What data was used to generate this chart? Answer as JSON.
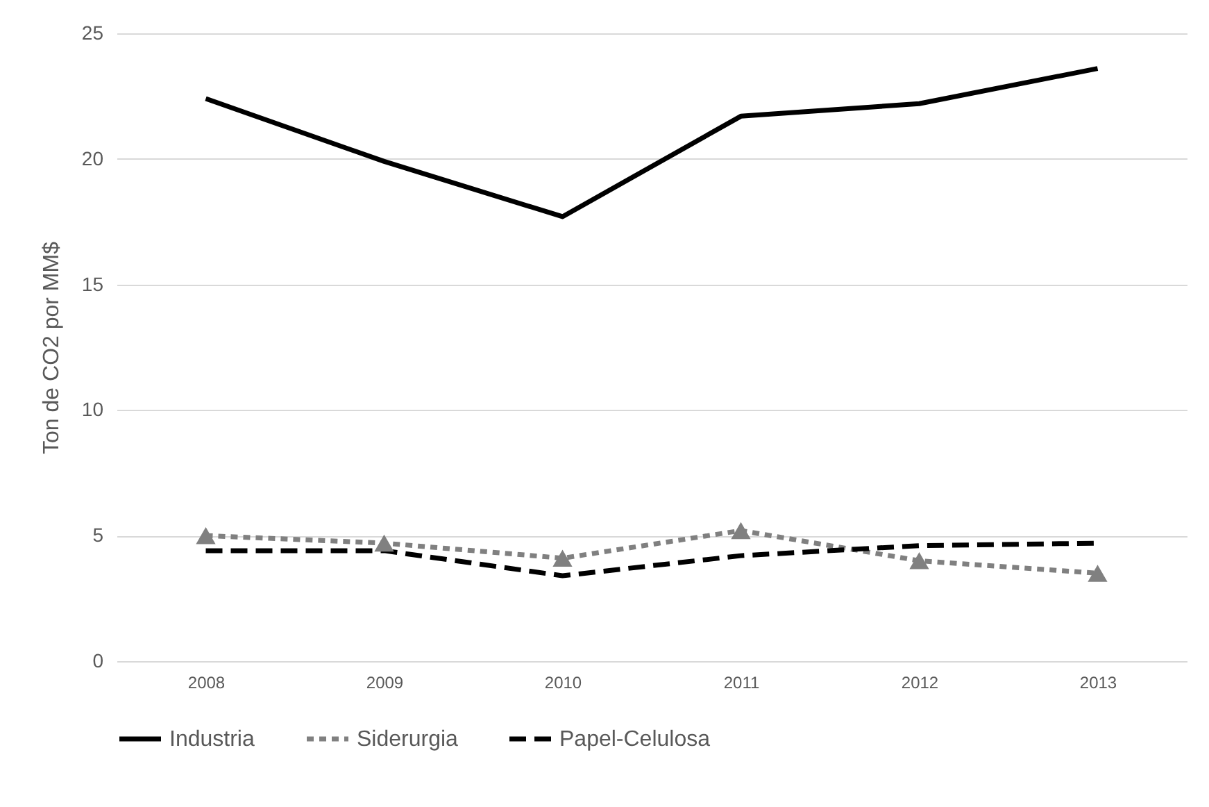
{
  "chart_data": {
    "type": "line",
    "ylabel": "Ton de CO2 por MM$",
    "categories": [
      "2008",
      "2009",
      "2010",
      "2011",
      "2012",
      "2013"
    ],
    "series": [
      {
        "name": "Industria",
        "color": "#000000",
        "line_style": "solid",
        "values": [
          22.4,
          19.9,
          17.7,
          21.7,
          22.2,
          23.6
        ]
      },
      {
        "name": "Siderurgia",
        "color": "#808080",
        "line_style": "dotted",
        "marker": "triangle",
        "values": [
          5.0,
          4.7,
          4.1,
          5.2,
          4.0,
          3.5
        ]
      },
      {
        "name": "Papel-Celulosa",
        "color": "#000000",
        "line_style": "dashed",
        "values": [
          4.4,
          4.4,
          3.4,
          4.2,
          4.6,
          4.7
        ]
      }
    ],
    "ylim": [
      0,
      25
    ],
    "yticks": [
      0,
      5,
      10,
      15,
      20,
      25
    ],
    "grid": "y",
    "legend": "bottom"
  }
}
